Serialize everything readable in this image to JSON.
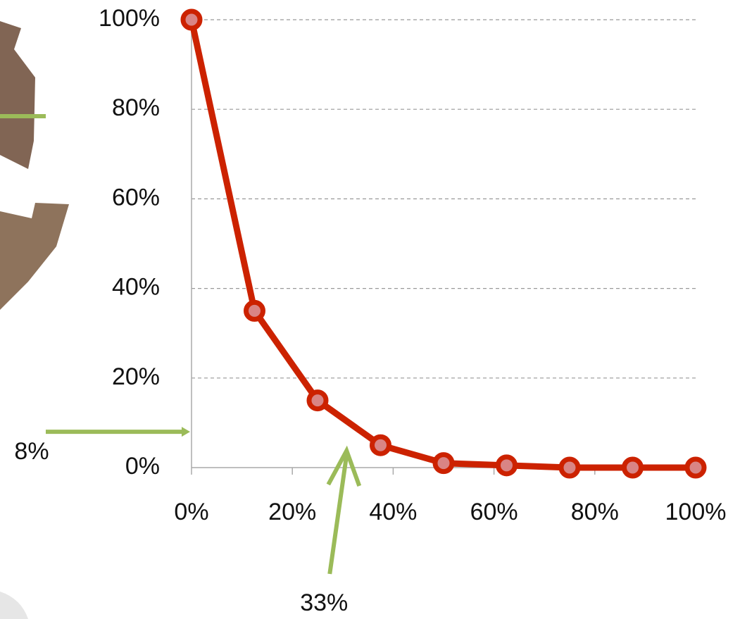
{
  "chart_data": {
    "type": "line",
    "x": [
      0,
      12.5,
      25,
      37.5,
      50,
      62.5,
      75,
      87.5,
      100
    ],
    "values": [
      100,
      35,
      15,
      5,
      1,
      0.5,
      0,
      0,
      0
    ],
    "color": "#cc2200",
    "xlim": [
      0,
      100
    ],
    "ylim": [
      0,
      100
    ],
    "xticks": [
      {
        "value": 0,
        "label": "0%"
      },
      {
        "value": 20,
        "label": "20%"
      },
      {
        "value": 40,
        "label": "40%"
      },
      {
        "value": 60,
        "label": "60%"
      },
      {
        "value": 80,
        "label": "80%"
      },
      {
        "value": 100,
        "label": "100%"
      }
    ],
    "yticks": [
      {
        "value": 0,
        "label": "0%"
      },
      {
        "value": 20,
        "label": "20%"
      },
      {
        "value": 40,
        "label": "40%"
      },
      {
        "value": 60,
        "label": "60%"
      },
      {
        "value": 80,
        "label": "80%"
      },
      {
        "value": 100,
        "label": "100%"
      }
    ],
    "grid": true,
    "annotations": [
      {
        "label": "8%",
        "value": 8,
        "axis": "y",
        "color": "#9bbb59"
      },
      {
        "label": "33%",
        "value": 33,
        "axis": "x",
        "color": "#9bbb59"
      }
    ]
  }
}
